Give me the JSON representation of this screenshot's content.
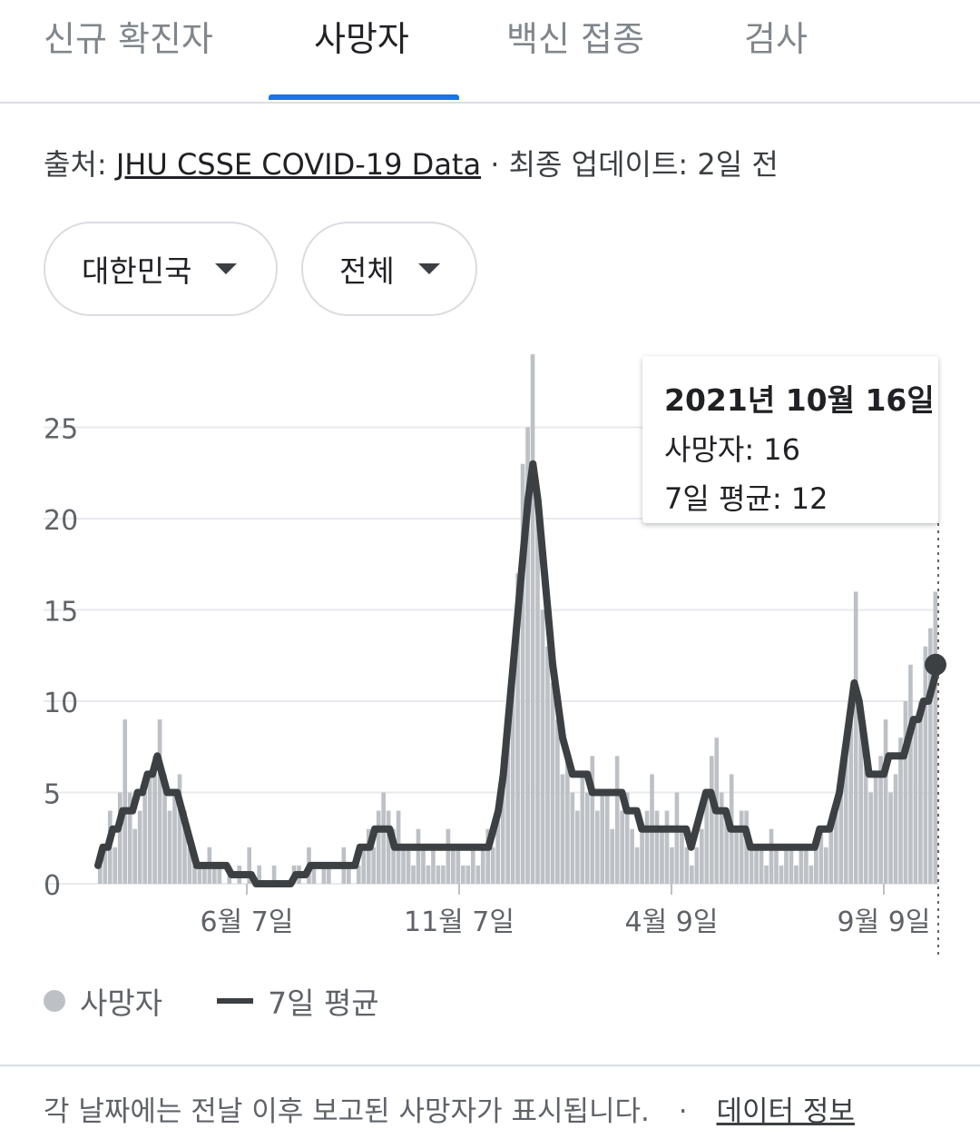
{
  "tabs": [
    {
      "label": "신규 확진자",
      "active": false
    },
    {
      "label": "사망자",
      "active": true
    },
    {
      "label": "백신 접종",
      "active": false
    },
    {
      "label": "검사",
      "active": false
    }
  ],
  "source": {
    "prefix": "출처: ",
    "link_text": "JHU CSSE COVID-19 Data",
    "separator": " · ",
    "updated": "최종 업데이트: 2일 전"
  },
  "filters": {
    "region": "대한민국",
    "scope": "전체"
  },
  "tooltip": {
    "date": "2021년 10월 16일",
    "deaths_label": "사망자: 16",
    "avg_label": "7일 평균: 12"
  },
  "legend": {
    "deaths": "사망자",
    "avg": "7일 평균"
  },
  "footer": {
    "note": "각 날짜에는 전날 이후 보고된 사망자가 표시됩니다.",
    "separator": "·",
    "link": "데이터 정보"
  },
  "colors": {
    "accent": "#1a73e8",
    "bars": "#bdc1c6",
    "line": "#3c4043"
  },
  "chart_data": {
    "type": "bar",
    "title": "",
    "xlabel": "",
    "ylabel": "",
    "ylim": [
      0,
      28
    ],
    "yticks": [
      0,
      5,
      10,
      15,
      20,
      25
    ],
    "xtick_labels": [
      "6월 7일",
      "11월 7일",
      "4월 9일",
      "9월 9일"
    ],
    "grid": true,
    "legend_position": "bottom-left",
    "series": [
      {
        "name": "사망자",
        "kind": "bar",
        "values": [
          1,
          2,
          4,
          2,
          5,
          9,
          5,
          3,
          4,
          5,
          6,
          7,
          9,
          6,
          4,
          5,
          6,
          4,
          2,
          1,
          1,
          1,
          2,
          1,
          1,
          0,
          1,
          0,
          1,
          0,
          2,
          0,
          1,
          0,
          0,
          1,
          0,
          0,
          0,
          1,
          1,
          0,
          2,
          1,
          0,
          1,
          1,
          0,
          0,
          2,
          1,
          0,
          1,
          2,
          3,
          2,
          4,
          5,
          4,
          3,
          4,
          2,
          2,
          1,
          3,
          2,
          1,
          2,
          1,
          1,
          3,
          2,
          2,
          1,
          1,
          2,
          1,
          2,
          3,
          2,
          4,
          7,
          8,
          11,
          17,
          23,
          25,
          29,
          20,
          15,
          13,
          11,
          9,
          6,
          7,
          5,
          4,
          6,
          5,
          7,
          4,
          5,
          5,
          3,
          7,
          4,
          5,
          3,
          2,
          3,
          4,
          6,
          4,
          3,
          4,
          2,
          5,
          3,
          2,
          1,
          2,
          3,
          5,
          7,
          8,
          5,
          4,
          6,
          3,
          4,
          4,
          2,
          2,
          2,
          1,
          3,
          2,
          1,
          2,
          2,
          1,
          2,
          2,
          1,
          2,
          3,
          2,
          3,
          4,
          6,
          8,
          10,
          16,
          9,
          7,
          5,
          6,
          7,
          9,
          5,
          6,
          8,
          10,
          12,
          9,
          10,
          13,
          14,
          16
        ]
      },
      {
        "name": "7일 평균",
        "kind": "line",
        "values": [
          1,
          2,
          2,
          3,
          3,
          4,
          4,
          4,
          5,
          5,
          6,
          6,
          7,
          6,
          5,
          5,
          5,
          4,
          3,
          2,
          1,
          1,
          1,
          1,
          1,
          1,
          1,
          0.5,
          0.5,
          0.5,
          0.5,
          0.5,
          0,
          0,
          0,
          0,
          0,
          0,
          0,
          0,
          0.5,
          0.5,
          0.5,
          1,
          1,
          1,
          1,
          1,
          1,
          1,
          1,
          1,
          1,
          2,
          2,
          2,
          3,
          3,
          3,
          3,
          2,
          2,
          2,
          2,
          2,
          2,
          2,
          2,
          2,
          2,
          2,
          2,
          2,
          2,
          2,
          2,
          2,
          2,
          2,
          2,
          3,
          4,
          6,
          9,
          12,
          15,
          18,
          21,
          23,
          21,
          18,
          15,
          12,
          10,
          8,
          7,
          6,
          6,
          6,
          6,
          5,
          5,
          5,
          5,
          5,
          5,
          5,
          4,
          4,
          4,
          3,
          3,
          3,
          3,
          3,
          3,
          3,
          3,
          3,
          3,
          2,
          3,
          4,
          5,
          5,
          4,
          4,
          4,
          3,
          3,
          3,
          3,
          2,
          2,
          2,
          2,
          2,
          2,
          2,
          2,
          2,
          2,
          2,
          2,
          2,
          2,
          3,
          3,
          3,
          4,
          5,
          7,
          9,
          11,
          10,
          8,
          6,
          6,
          6,
          6,
          7,
          7,
          7,
          7,
          8,
          9,
          9,
          10,
          10,
          11,
          12
        ]
      }
    ],
    "highlight": {
      "date": "2021년 10월 16일",
      "deaths": 16,
      "avg": 12
    }
  }
}
